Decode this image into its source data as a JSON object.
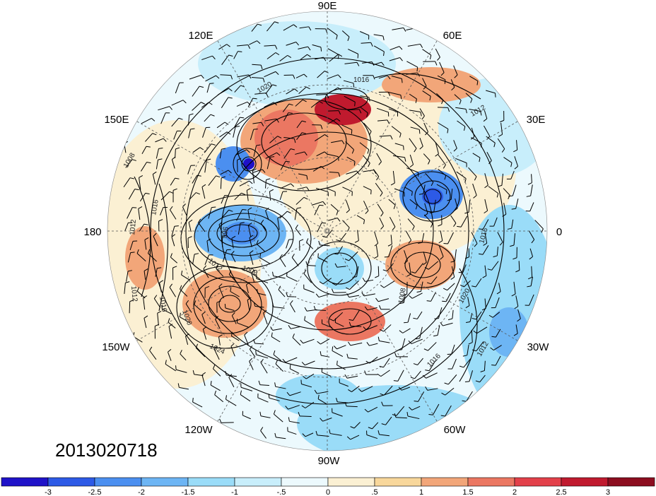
{
  "map": {
    "lon_labels": [
      "90E",
      "60E",
      "30E",
      "0",
      "30W",
      "60W",
      "90W",
      "120W",
      "150W",
      "180",
      "150E",
      "120E"
    ],
    "isobar_labels": [
      "1016",
      "1020",
      "1012",
      "1008",
      "1016",
      "1012",
      "996",
      "1012",
      "1000",
      "1012",
      "1016",
      "1020",
      "1024",
      "1016",
      "1020",
      "1008",
      "1016",
      "1012"
    ],
    "date_stamp": "2013020718",
    "legend_colorbar": {
      "labels": [
        "-3",
        "-2.5",
        "-2",
        "-1.5",
        "-1",
        "-.5",
        "0",
        ".5",
        "1",
        "1.5",
        "2",
        "2.5",
        "3"
      ],
      "colors": [
        "#1f12c8",
        "#2d5ae6",
        "#4b8ff0",
        "#6db5f4",
        "#9adcf8",
        "#c8eefb",
        "#ecf9fd",
        "#fbf0d3",
        "#f8d79b",
        "#f2a679",
        "#eb7762",
        "#e3404a",
        "#c01a2e",
        "#8c0d1f"
      ]
    },
    "anomaly_colors": {
      "strong_negative": "#2d5ae6",
      "negative": "#6db5f4",
      "weak_negative": "#c8eefb",
      "weak_positive": "#fbf0d3",
      "positive": "#f2a679",
      "strong_positive": "#c01a2e"
    }
  }
}
